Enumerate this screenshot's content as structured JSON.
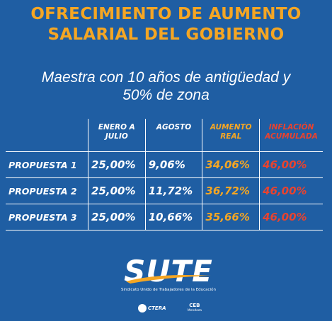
{
  "header": {
    "title_line1": "OFRECIMIENTO DE AUMENTO",
    "title_line2": "SALARIAL DEL GOBIERNO",
    "subtitle_line1": "Maestra con 10 años de antigüedad y",
    "subtitle_line2": "50% de zona"
  },
  "table": {
    "columns": [
      {
        "label_line1": "ENERO A",
        "label_line2": "JULIO",
        "color": "#ffffff"
      },
      {
        "label_line1": "AGOSTO",
        "label_line2": "",
        "color": "#ffffff"
      },
      {
        "label_line1": "AUMENTO",
        "label_line2": "REAL",
        "color": "#f5a623"
      },
      {
        "label_line1": "INFLACIÓN",
        "label_line2": "ACUMULADA",
        "color": "#e8432f"
      }
    ],
    "rows": [
      {
        "label": "PROPUESTA 1",
        "values": [
          "25,00%",
          "9,06%",
          "34,06%",
          "46,00%"
        ]
      },
      {
        "label": "PROPUESTA 2",
        "values": [
          "25,00%",
          "11,72%",
          "36,72%",
          "46,00%"
        ]
      },
      {
        "label": "PROPUESTA 3",
        "values": [
          "25,00%",
          "10,66%",
          "35,66%",
          "46,00%"
        ]
      }
    ]
  },
  "footer": {
    "logo_text": "SUTE",
    "logo_subtitle": "Sindicato Unido de Trabajadores de la Educación",
    "partner1": "CTERA",
    "partner2": "CEB",
    "partner2_sub": "Mendoza"
  },
  "colors": {
    "background": "#1f5ea3",
    "accent_orange": "#f5a623",
    "accent_red": "#e8432f",
    "text_white": "#ffffff"
  }
}
